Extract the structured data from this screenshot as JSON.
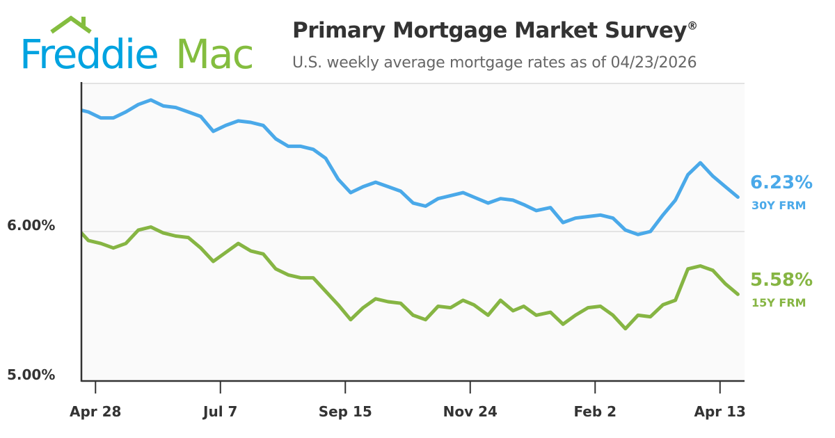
{
  "logo": {
    "part1": "Freddie",
    "part2": "Mac",
    "colors": {
      "freddie": "#00a3e0",
      "mac": "#84bd3f"
    }
  },
  "header": {
    "title": "Primary Mortgage Market Survey",
    "registered_mark": "®",
    "subtitle": "U.S. weekly average mortgage rates as of 04/23/2026"
  },
  "chart_data": {
    "type": "line",
    "title": "Primary Mortgage Market Survey®",
    "subtitle": "U.S. weekly average mortgage rates as of 04/23/2026",
    "x": [
      "2025-04-17",
      "2025-04-24",
      "2025-05-01",
      "2025-05-08",
      "2025-05-15",
      "2025-05-22",
      "2025-05-29",
      "2025-06-05",
      "2025-06-12",
      "2025-06-19",
      "2025-06-26",
      "2025-07-03",
      "2025-07-10",
      "2025-07-17",
      "2025-07-24",
      "2025-07-31",
      "2025-08-07",
      "2025-08-14",
      "2025-08-21",
      "2025-08-28",
      "2025-09-04",
      "2025-09-11",
      "2025-09-18",
      "2025-09-25",
      "2025-10-02",
      "2025-10-09",
      "2025-10-16",
      "2025-10-23",
      "2025-10-30",
      "2025-11-06",
      "2025-11-13",
      "2025-11-20",
      "2025-11-26",
      "2025-12-04",
      "2025-12-11",
      "2025-12-18",
      "2025-12-24",
      "2025-12-31",
      "2026-01-08",
      "2026-01-15",
      "2026-01-22",
      "2026-01-29",
      "2026-02-05",
      "2026-02-12",
      "2026-02-19",
      "2026-02-26",
      "2026-03-05",
      "2026-03-12",
      "2026-03-19",
      "2026-03-26",
      "2026-04-02",
      "2026-04-09",
      "2026-04-16",
      "2026-04-23"
    ],
    "series": [
      {
        "name": "30Y FRM",
        "color": "#4aa9e9",
        "last_label": "6.23%",
        "values": [
          6.82,
          6.8,
          6.76,
          6.76,
          6.8,
          6.85,
          6.88,
          6.84,
          6.83,
          6.8,
          6.77,
          6.67,
          6.71,
          6.74,
          6.73,
          6.71,
          6.62,
          6.57,
          6.57,
          6.55,
          6.49,
          6.35,
          6.26,
          6.3,
          6.33,
          6.3,
          6.27,
          6.19,
          6.17,
          6.22,
          6.24,
          6.26,
          6.23,
          6.19,
          6.22,
          6.21,
          6.18,
          6.14,
          6.16,
          6.06,
          6.09,
          6.1,
          6.11,
          6.09,
          6.01,
          5.98,
          6.0,
          6.11,
          6.21,
          6.38,
          6.46,
          6.37,
          6.3,
          6.23
        ]
      },
      {
        "name": "15Y FRM",
        "color": "#86b543",
        "last_label": "5.58%",
        "values": [
          6.03,
          5.94,
          5.92,
          5.89,
          5.92,
          6.01,
          6.03,
          5.99,
          5.97,
          5.96,
          5.89,
          5.8,
          5.86,
          5.92,
          5.87,
          5.85,
          5.75,
          5.71,
          5.69,
          5.69,
          5.6,
          5.51,
          5.41,
          5.49,
          5.55,
          5.53,
          5.52,
          5.44,
          5.41,
          5.5,
          5.49,
          5.54,
          5.51,
          5.44,
          5.54,
          5.47,
          5.5,
          5.44,
          5.46,
          5.38,
          5.44,
          5.49,
          5.5,
          5.44,
          5.35,
          5.44,
          5.43,
          5.51,
          5.54,
          5.75,
          5.77,
          5.74,
          5.65,
          5.58
        ]
      }
    ],
    "x_ticks": [
      {
        "date": "2025-04-28",
        "label": "Apr 28"
      },
      {
        "date": "2025-07-07",
        "label": "Jul 7"
      },
      {
        "date": "2025-09-15",
        "label": "Sep 15"
      },
      {
        "date": "2025-11-24",
        "label": "Nov 24"
      },
      {
        "date": "2026-02-02",
        "label": "Feb 2"
      },
      {
        "date": "2026-04-13",
        "label": "Apr 13"
      }
    ],
    "y_ticks": [
      {
        "value": 5.0,
        "label": "5.00%"
      },
      {
        "value": 6.0,
        "label": "6.00%"
      }
    ],
    "ylim": [
      5.0,
      7.0
    ],
    "xlim": [
      "2025-04-18",
      "2026-04-28"
    ],
    "grid": true,
    "legend": "right-end labels"
  }
}
